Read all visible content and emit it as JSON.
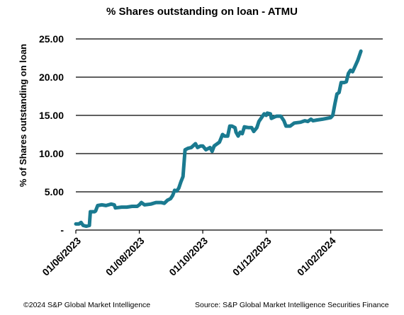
{
  "chart_data": {
    "type": "line",
    "title": "% Shares outstanding on loan - ATMU",
    "ylabel": "% of Shares outstanding on loan",
    "xlabel": "",
    "ylim": [
      0,
      25
    ],
    "yticks": [
      "25.00",
      "20.00",
      "15.00",
      "10.00",
      "5.00",
      "-"
    ],
    "xticks": [
      "01/06/2023",
      "01/08/2023",
      "01/10/2023",
      "01/12/2023",
      "01/02/2024"
    ],
    "x_range": [
      "2023-06-01",
      "2024-03-22"
    ],
    "grid": true,
    "legend": "none",
    "line_color": "#1a7a90",
    "series": [
      {
        "points": [
          [
            "2023-06-01",
            0.8
          ],
          [
            "2023-06-04",
            0.8
          ],
          [
            "2023-06-06",
            1.0
          ],
          [
            "2023-06-08",
            0.6
          ],
          [
            "2023-06-11",
            0.5
          ],
          [
            "2023-06-14",
            0.6
          ],
          [
            "2023-06-15",
            2.4
          ],
          [
            "2023-06-19",
            2.4
          ],
          [
            "2023-06-20",
            2.5
          ],
          [
            "2023-06-22",
            3.2
          ],
          [
            "2023-06-26",
            3.3
          ],
          [
            "2023-06-30",
            3.2
          ],
          [
            "2023-07-05",
            3.4
          ],
          [
            "2023-07-08",
            3.3
          ],
          [
            "2023-07-09",
            2.9
          ],
          [
            "2023-07-15",
            3.0
          ],
          [
            "2023-07-20",
            3.0
          ],
          [
            "2023-07-25",
            3.1
          ],
          [
            "2023-07-30",
            3.1
          ],
          [
            "2023-08-01",
            3.3
          ],
          [
            "2023-08-03",
            3.6
          ],
          [
            "2023-08-06",
            3.3
          ],
          [
            "2023-08-12",
            3.4
          ],
          [
            "2023-08-17",
            3.6
          ],
          [
            "2023-08-22",
            3.6
          ],
          [
            "2023-08-25",
            3.5
          ],
          [
            "2023-08-28",
            3.9
          ],
          [
            "2023-08-31",
            4.1
          ],
          [
            "2023-09-02",
            4.5
          ],
          [
            "2023-09-04",
            5.2
          ],
          [
            "2023-09-06",
            5.1
          ],
          [
            "2023-09-08",
            5.5
          ],
          [
            "2023-09-10",
            6.3
          ],
          [
            "2023-09-12",
            7.0
          ],
          [
            "2023-09-14",
            10.5
          ],
          [
            "2023-09-17",
            10.7
          ],
          [
            "2023-09-20",
            10.8
          ],
          [
            "2023-09-24",
            11.3
          ],
          [
            "2023-09-26",
            10.8
          ],
          [
            "2023-09-29",
            11.0
          ],
          [
            "2023-10-01",
            11.0
          ],
          [
            "2023-10-04",
            10.5
          ],
          [
            "2023-10-08",
            10.8
          ],
          [
            "2023-10-10",
            10.3
          ],
          [
            "2023-10-12",
            11.0
          ],
          [
            "2023-10-14",
            11.2
          ],
          [
            "2023-10-17",
            11.5
          ],
          [
            "2023-10-20",
            12.5
          ],
          [
            "2023-10-22",
            12.3
          ],
          [
            "2023-10-25",
            12.3
          ],
          [
            "2023-10-27",
            13.6
          ],
          [
            "2023-10-29",
            13.6
          ],
          [
            "2023-11-01",
            13.4
          ],
          [
            "2023-11-02",
            12.8
          ],
          [
            "2023-11-04",
            12.3
          ],
          [
            "2023-11-06",
            12.8
          ],
          [
            "2023-11-08",
            12.6
          ],
          [
            "2023-11-10",
            13.5
          ],
          [
            "2023-11-14",
            13.4
          ],
          [
            "2023-11-17",
            13.4
          ],
          [
            "2023-11-19",
            12.9
          ],
          [
            "2023-11-22",
            13.4
          ],
          [
            "2023-11-24",
            14.2
          ],
          [
            "2023-11-27",
            14.8
          ],
          [
            "2023-11-29",
            15.2
          ],
          [
            "2023-12-01",
            15.0
          ],
          [
            "2023-12-02",
            15.3
          ],
          [
            "2023-12-05",
            15.2
          ],
          [
            "2023-12-06",
            14.6
          ],
          [
            "2023-12-09",
            14.8
          ],
          [
            "2023-12-11",
            14.9
          ],
          [
            "2023-12-15",
            14.9
          ],
          [
            "2023-12-18",
            14.3
          ],
          [
            "2023-12-20",
            13.6
          ],
          [
            "2023-12-24",
            13.6
          ],
          [
            "2023-12-28",
            14.0
          ],
          [
            "2024-01-03",
            14.1
          ],
          [
            "2024-01-07",
            14.3
          ],
          [
            "2024-01-10",
            14.2
          ],
          [
            "2024-01-13",
            14.5
          ],
          [
            "2024-01-15",
            14.3
          ],
          [
            "2024-01-19",
            14.4
          ],
          [
            "2024-01-24",
            14.5
          ],
          [
            "2024-01-28",
            14.6
          ],
          [
            "2024-02-01",
            14.7
          ],
          [
            "2024-02-03",
            15.0
          ],
          [
            "2024-02-05",
            16.5
          ],
          [
            "2024-02-07",
            17.8
          ],
          [
            "2024-02-09",
            18.0
          ],
          [
            "2024-02-11",
            19.3
          ],
          [
            "2024-02-14",
            19.3
          ],
          [
            "2024-02-16",
            19.4
          ],
          [
            "2024-02-18",
            20.5
          ],
          [
            "2024-02-20",
            20.9
          ],
          [
            "2024-02-22",
            20.7
          ],
          [
            "2024-02-24",
            21.3
          ],
          [
            "2024-02-27",
            22.2
          ],
          [
            "2024-03-01",
            23.4
          ]
        ]
      }
    ]
  },
  "footer": {
    "copyright": "©2024 S&P Global Market Intelligence",
    "source": "Source: S&P Global Market Intelligence Securities Finance"
  }
}
